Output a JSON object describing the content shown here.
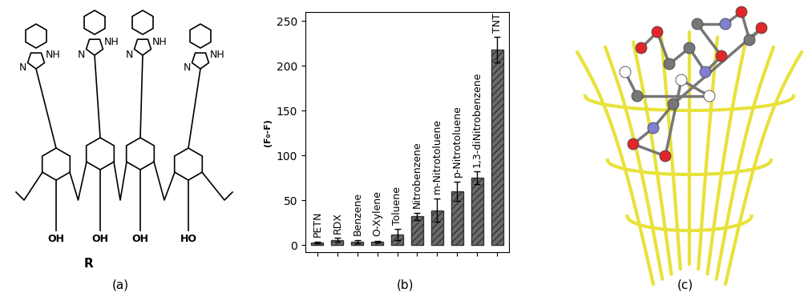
{
  "panel_labels": [
    "(a)",
    "(b)",
    "(c)"
  ],
  "structure": {
    "name": "R",
    "imidazole_labels": [
      [
        "N",
        "NH"
      ],
      [
        "N",
        "NH"
      ],
      [
        "N",
        "NH"
      ],
      [
        "N",
        "NH"
      ]
    ],
    "hydroxyl_labels": [
      "OH",
      "OH",
      "OH",
      "HO"
    ]
  },
  "chart_data": {
    "type": "bar",
    "categories": [
      "PETN",
      "RDX",
      "Benzene",
      "O-Xylene",
      "Toluene",
      "Nitrobenzene",
      "m-Nitrotoluene",
      "p-Nitrotoluene",
      "1,3-diNitrobenzene",
      "TNT"
    ],
    "values": [
      3,
      6,
      4,
      4,
      12,
      32,
      39,
      60,
      75,
      218
    ],
    "errors": [
      1,
      2,
      2,
      1,
      6,
      4,
      13,
      11,
      7,
      14
    ],
    "ylabel": "(F₀-F)",
    "ylim": [
      -8,
      260
    ],
    "yticks": [
      0,
      50,
      100,
      150,
      200,
      250
    ],
    "color": "#6b6b6b",
    "tick_labels": "y"
  }
}
